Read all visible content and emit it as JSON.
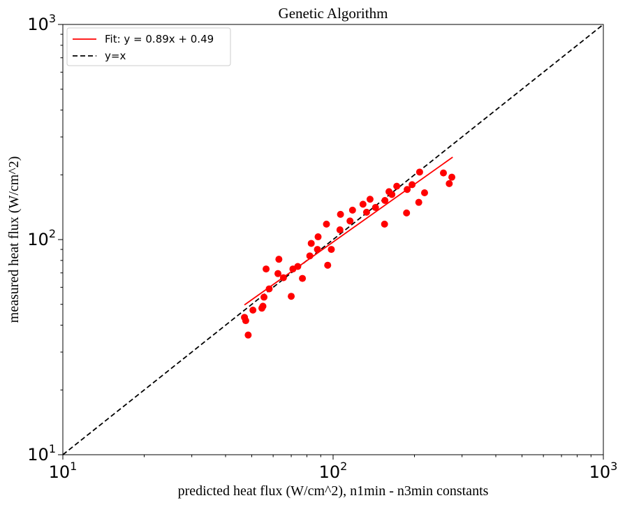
{
  "chart_data": {
    "type": "scatter",
    "title": "Genetic Algorithm",
    "xlabel": "predicted heat flux (W/cm^2), n1min - n3min constants",
    "ylabel": "measured heat flux (W/cm^2)",
    "xscale": "log",
    "yscale": "log",
    "xlim": [
      10,
      1000
    ],
    "ylim": [
      10,
      1000
    ],
    "major_ticks": [
      {
        "value": 10,
        "base": "10",
        "exp": "1"
      },
      {
        "value": 100,
        "base": "10",
        "exp": "2"
      },
      {
        "value": 1000,
        "base": "10",
        "exp": "3"
      }
    ],
    "grid": false,
    "legend_position": "top-left",
    "legend": [
      {
        "label": "Fit: y = 0.89x + 0.49",
        "color": "#ff0000",
        "style": "solid"
      },
      {
        "label": "y=x",
        "color": "#000000",
        "style": "dashed"
      }
    ],
    "fit_line": {
      "x": [
        47,
        277
      ],
      "y": [
        49.7,
        241.6
      ],
      "color": "#ff0000"
    },
    "identity_line": {
      "x": [
        10,
        1000
      ],
      "y": [
        10,
        1000
      ],
      "color": "#000000"
    },
    "points_color": "#ff0000",
    "points": [
      {
        "x": 47,
        "y": 43.5
      },
      {
        "x": 47.5,
        "y": 42
      },
      {
        "x": 48.5,
        "y": 36
      },
      {
        "x": 50.5,
        "y": 47
      },
      {
        "x": 54.5,
        "y": 48
      },
      {
        "x": 55,
        "y": 49
      },
      {
        "x": 55.5,
        "y": 54
      },
      {
        "x": 56.5,
        "y": 73
      },
      {
        "x": 58,
        "y": 59
      },
      {
        "x": 62.5,
        "y": 69.5
      },
      {
        "x": 63,
        "y": 81
      },
      {
        "x": 65.5,
        "y": 66.5
      },
      {
        "x": 70,
        "y": 54.5
      },
      {
        "x": 71,
        "y": 73
      },
      {
        "x": 74,
        "y": 75
      },
      {
        "x": 77,
        "y": 66
      },
      {
        "x": 82,
        "y": 84
      },
      {
        "x": 83,
        "y": 96
      },
      {
        "x": 87.5,
        "y": 90
      },
      {
        "x": 88,
        "y": 103
      },
      {
        "x": 94.5,
        "y": 118
      },
      {
        "x": 95.5,
        "y": 76
      },
      {
        "x": 98.5,
        "y": 90
      },
      {
        "x": 106,
        "y": 111
      },
      {
        "x": 106.5,
        "y": 131
      },
      {
        "x": 115.5,
        "y": 122
      },
      {
        "x": 118,
        "y": 137
      },
      {
        "x": 129,
        "y": 146
      },
      {
        "x": 133,
        "y": 134
      },
      {
        "x": 137,
        "y": 154
      },
      {
        "x": 143.5,
        "y": 141
      },
      {
        "x": 155,
        "y": 118
      },
      {
        "x": 155.5,
        "y": 152
      },
      {
        "x": 161,
        "y": 167
      },
      {
        "x": 165,
        "y": 162
      },
      {
        "x": 172,
        "y": 177
      },
      {
        "x": 187,
        "y": 133
      },
      {
        "x": 188,
        "y": 171
      },
      {
        "x": 196,
        "y": 180
      },
      {
        "x": 207.5,
        "y": 149
      },
      {
        "x": 209,
        "y": 206
      },
      {
        "x": 218,
        "y": 165
      },
      {
        "x": 256,
        "y": 204
      },
      {
        "x": 269,
        "y": 182
      },
      {
        "x": 275,
        "y": 195
      }
    ]
  }
}
